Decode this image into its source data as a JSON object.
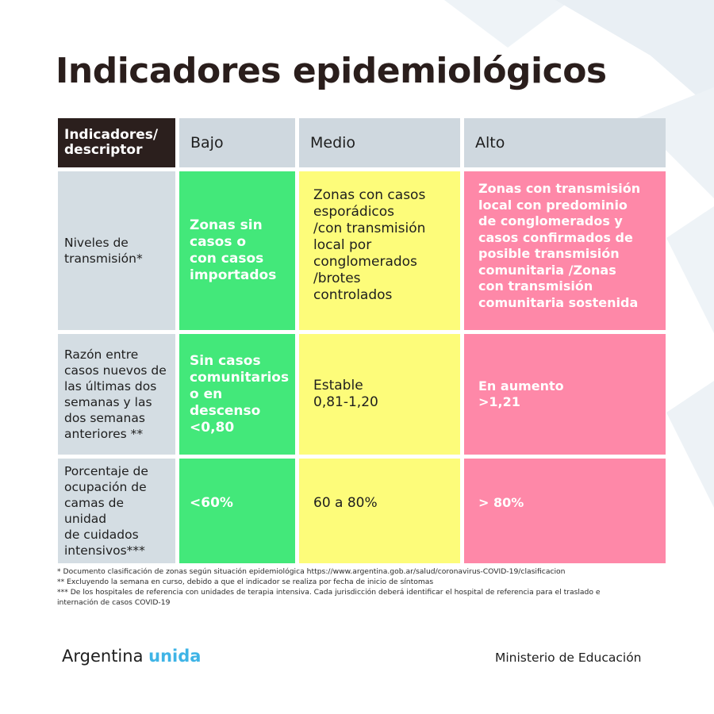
{
  "title": "Indicadores epidemiológicos",
  "table": {
    "headers": {
      "descriptor": "Indicadores/\ndescriptor",
      "low": "Bajo",
      "medium": "Medio",
      "high": "Alto"
    },
    "rows": [
      {
        "descriptor": "Niveles de\ntransmisión*",
        "low": "Zonas sin\ncasos o\ncon casos\nimportados",
        "medium": "Zonas con casos\nesporádicos\n/con transmisión\nlocal por\nconglomerados\n/brotes\ncontrolados",
        "high": "Zonas con transmisión\nlocal con predominio\nde conglomerados y\ncasos confirmados de\nposible transmisión\ncomunitaria /Zonas\ncon transmisión\ncomunitaria sostenida"
      },
      {
        "descriptor": "Razón entre\ncasos nuevos de\nlas últimas dos\nsemanas y las\ndos semanas\nanteriores **",
        "low": "Sin casos\ncomunitarios\no en\ndescenso\n<0,80",
        "medium": "Estable\n0,81-1,20",
        "high": "En aumento\n>1,21"
      },
      {
        "descriptor": "Porcentaje de\nocupación de\ncamas de unidad\nde cuidados\nintensivos***",
        "low": "<60%",
        "medium": "60 a 80%",
        "high": "> 80%"
      }
    ]
  },
  "footnotes": [
    "* Documento clasificación de zonas según situación epidemiológica https://www.argentina.gob.ar/salud/coronavirus-COVID-19/clasificacion",
    "** Excluyendo la semana en curso, debido a que el indicador se realiza por fecha de inicio de síntomas",
    "*** De los hospitales de referencia con unidades de terapia intensiva. Cada jurisdicción deberá identificar el hospital de referencia para el traslado e",
    "internación de casos COVID-19"
  ],
  "footer": {
    "brand_main": "Argentina",
    "brand_accent": "unida",
    "ministry": "Ministerio de Educación"
  },
  "colors": {
    "low": "#43e87a",
    "medium": "#fdfc7a",
    "high": "#fe88a8",
    "header": "#cfd8df",
    "corner": "#2b1f1d",
    "brand_accent": "#3fb4e6"
  }
}
